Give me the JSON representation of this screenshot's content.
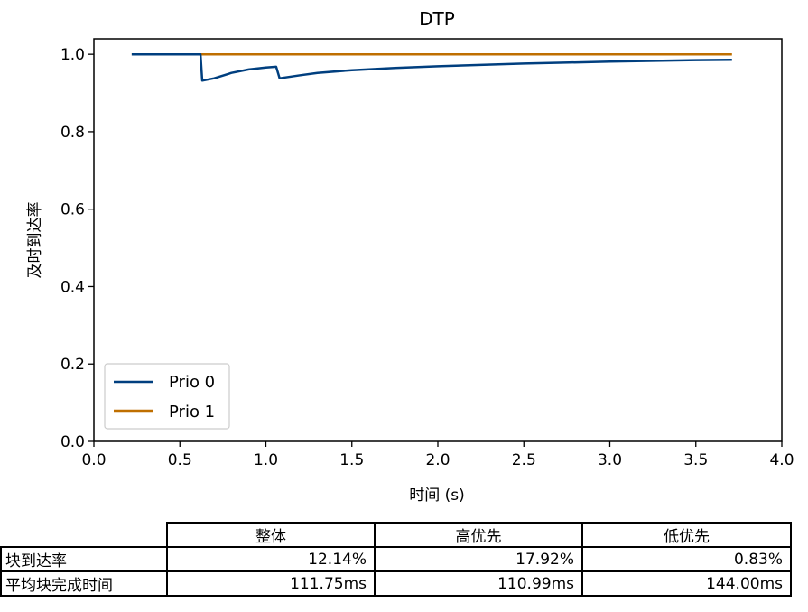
{
  "chart_data": {
    "type": "line",
    "title": "DTP",
    "xlabel": "时间 (s)",
    "ylabel": "及时到达率",
    "xlim": [
      0.0,
      4.0
    ],
    "ylim": [
      0.0,
      1.04
    ],
    "xticks": [
      "0.0",
      "0.5",
      "1.0",
      "1.5",
      "2.0",
      "2.5",
      "3.0",
      "3.5",
      "4.0"
    ],
    "yticks": [
      "0.0",
      "0.2",
      "0.4",
      "0.6",
      "0.8",
      "1.0"
    ],
    "legend_position": "lower-left",
    "series": [
      {
        "name": "Prio 0",
        "color": "#003f7f",
        "points": [
          [
            0.22,
            1.0
          ],
          [
            0.62,
            1.0
          ],
          [
            0.63,
            0.932
          ],
          [
            0.7,
            0.938
          ],
          [
            0.8,
            0.952
          ],
          [
            0.9,
            0.961
          ],
          [
            1.0,
            0.966
          ],
          [
            1.06,
            0.968
          ],
          [
            1.08,
            0.938
          ],
          [
            1.2,
            0.946
          ],
          [
            1.3,
            0.952
          ],
          [
            1.5,
            0.959
          ],
          [
            1.75,
            0.965
          ],
          [
            2.0,
            0.969
          ],
          [
            2.5,
            0.976
          ],
          [
            3.0,
            0.981
          ],
          [
            3.5,
            0.985
          ],
          [
            3.71,
            0.986
          ]
        ]
      },
      {
        "name": "Prio 1",
        "color": "#bf6f00",
        "points": [
          [
            0.22,
            1.0
          ],
          [
            3.71,
            1.0
          ]
        ]
      }
    ]
  },
  "table": {
    "headers": [
      "整体",
      "高优先",
      "低优先"
    ],
    "rows": [
      {
        "label": "块到达率",
        "values": [
          "12.14%",
          "17.92%",
          "0.83%"
        ]
      },
      {
        "label": "平均块完成时间",
        "values": [
          "111.75ms",
          "110.99ms",
          "144.00ms"
        ]
      }
    ]
  }
}
